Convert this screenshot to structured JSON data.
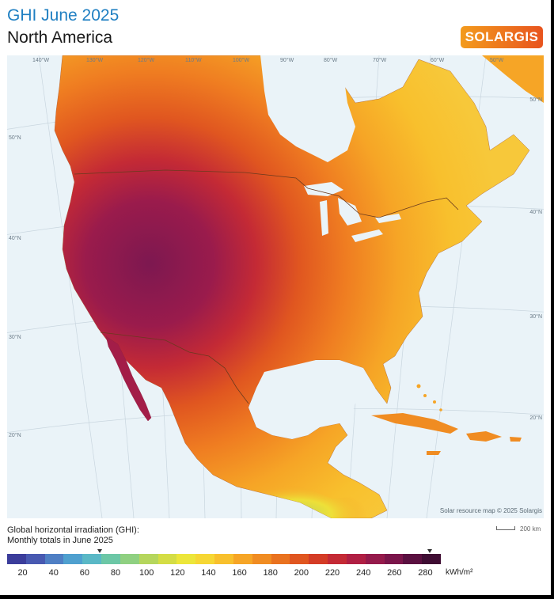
{
  "header": {
    "title": "GHI June 2025",
    "subtitle": "North America",
    "logo_text": "SOLARGIS"
  },
  "map": {
    "longitude_labels": [
      "140°W",
      "130°W",
      "120°W",
      "110°W",
      "100°W",
      "90°W",
      "80°W",
      "70°W",
      "60°W",
      "50°W"
    ],
    "latitude_labels_left": [
      "50°N",
      "40°N",
      "30°N",
      "20°N"
    ],
    "latitude_labels_right": [
      "50°N",
      "40°N",
      "30°N",
      "20°N"
    ],
    "attribution": "Solar resource map © 2025 Solargis",
    "scale_label": "200 km"
  },
  "legend": {
    "line1": "Global horizontal irradiation (GHI):",
    "line2": "Monthly totals in June 2025",
    "ticks": [
      "20",
      "40",
      "60",
      "80",
      "100",
      "120",
      "140",
      "160",
      "180",
      "200",
      "220",
      "240",
      "260",
      "280"
    ],
    "unit": "kWh/m²",
    "range": [
      10,
      290
    ],
    "markers_at": [
      70,
      283
    ],
    "colors": [
      "#3b3d9b",
      "#4859b1",
      "#4f7fc4",
      "#4fa0cf",
      "#5ab8c6",
      "#6cc7a6",
      "#8fd081",
      "#b5d65d",
      "#d4dd45",
      "#ece63a",
      "#f6d734",
      "#f8c02d",
      "#f6a526",
      "#f08c22",
      "#e9721f",
      "#e05620",
      "#d43c26",
      "#c42a35",
      "#b01f43",
      "#951a4b",
      "#7a154a",
      "#5a1040",
      "#3f0d33"
    ]
  }
}
